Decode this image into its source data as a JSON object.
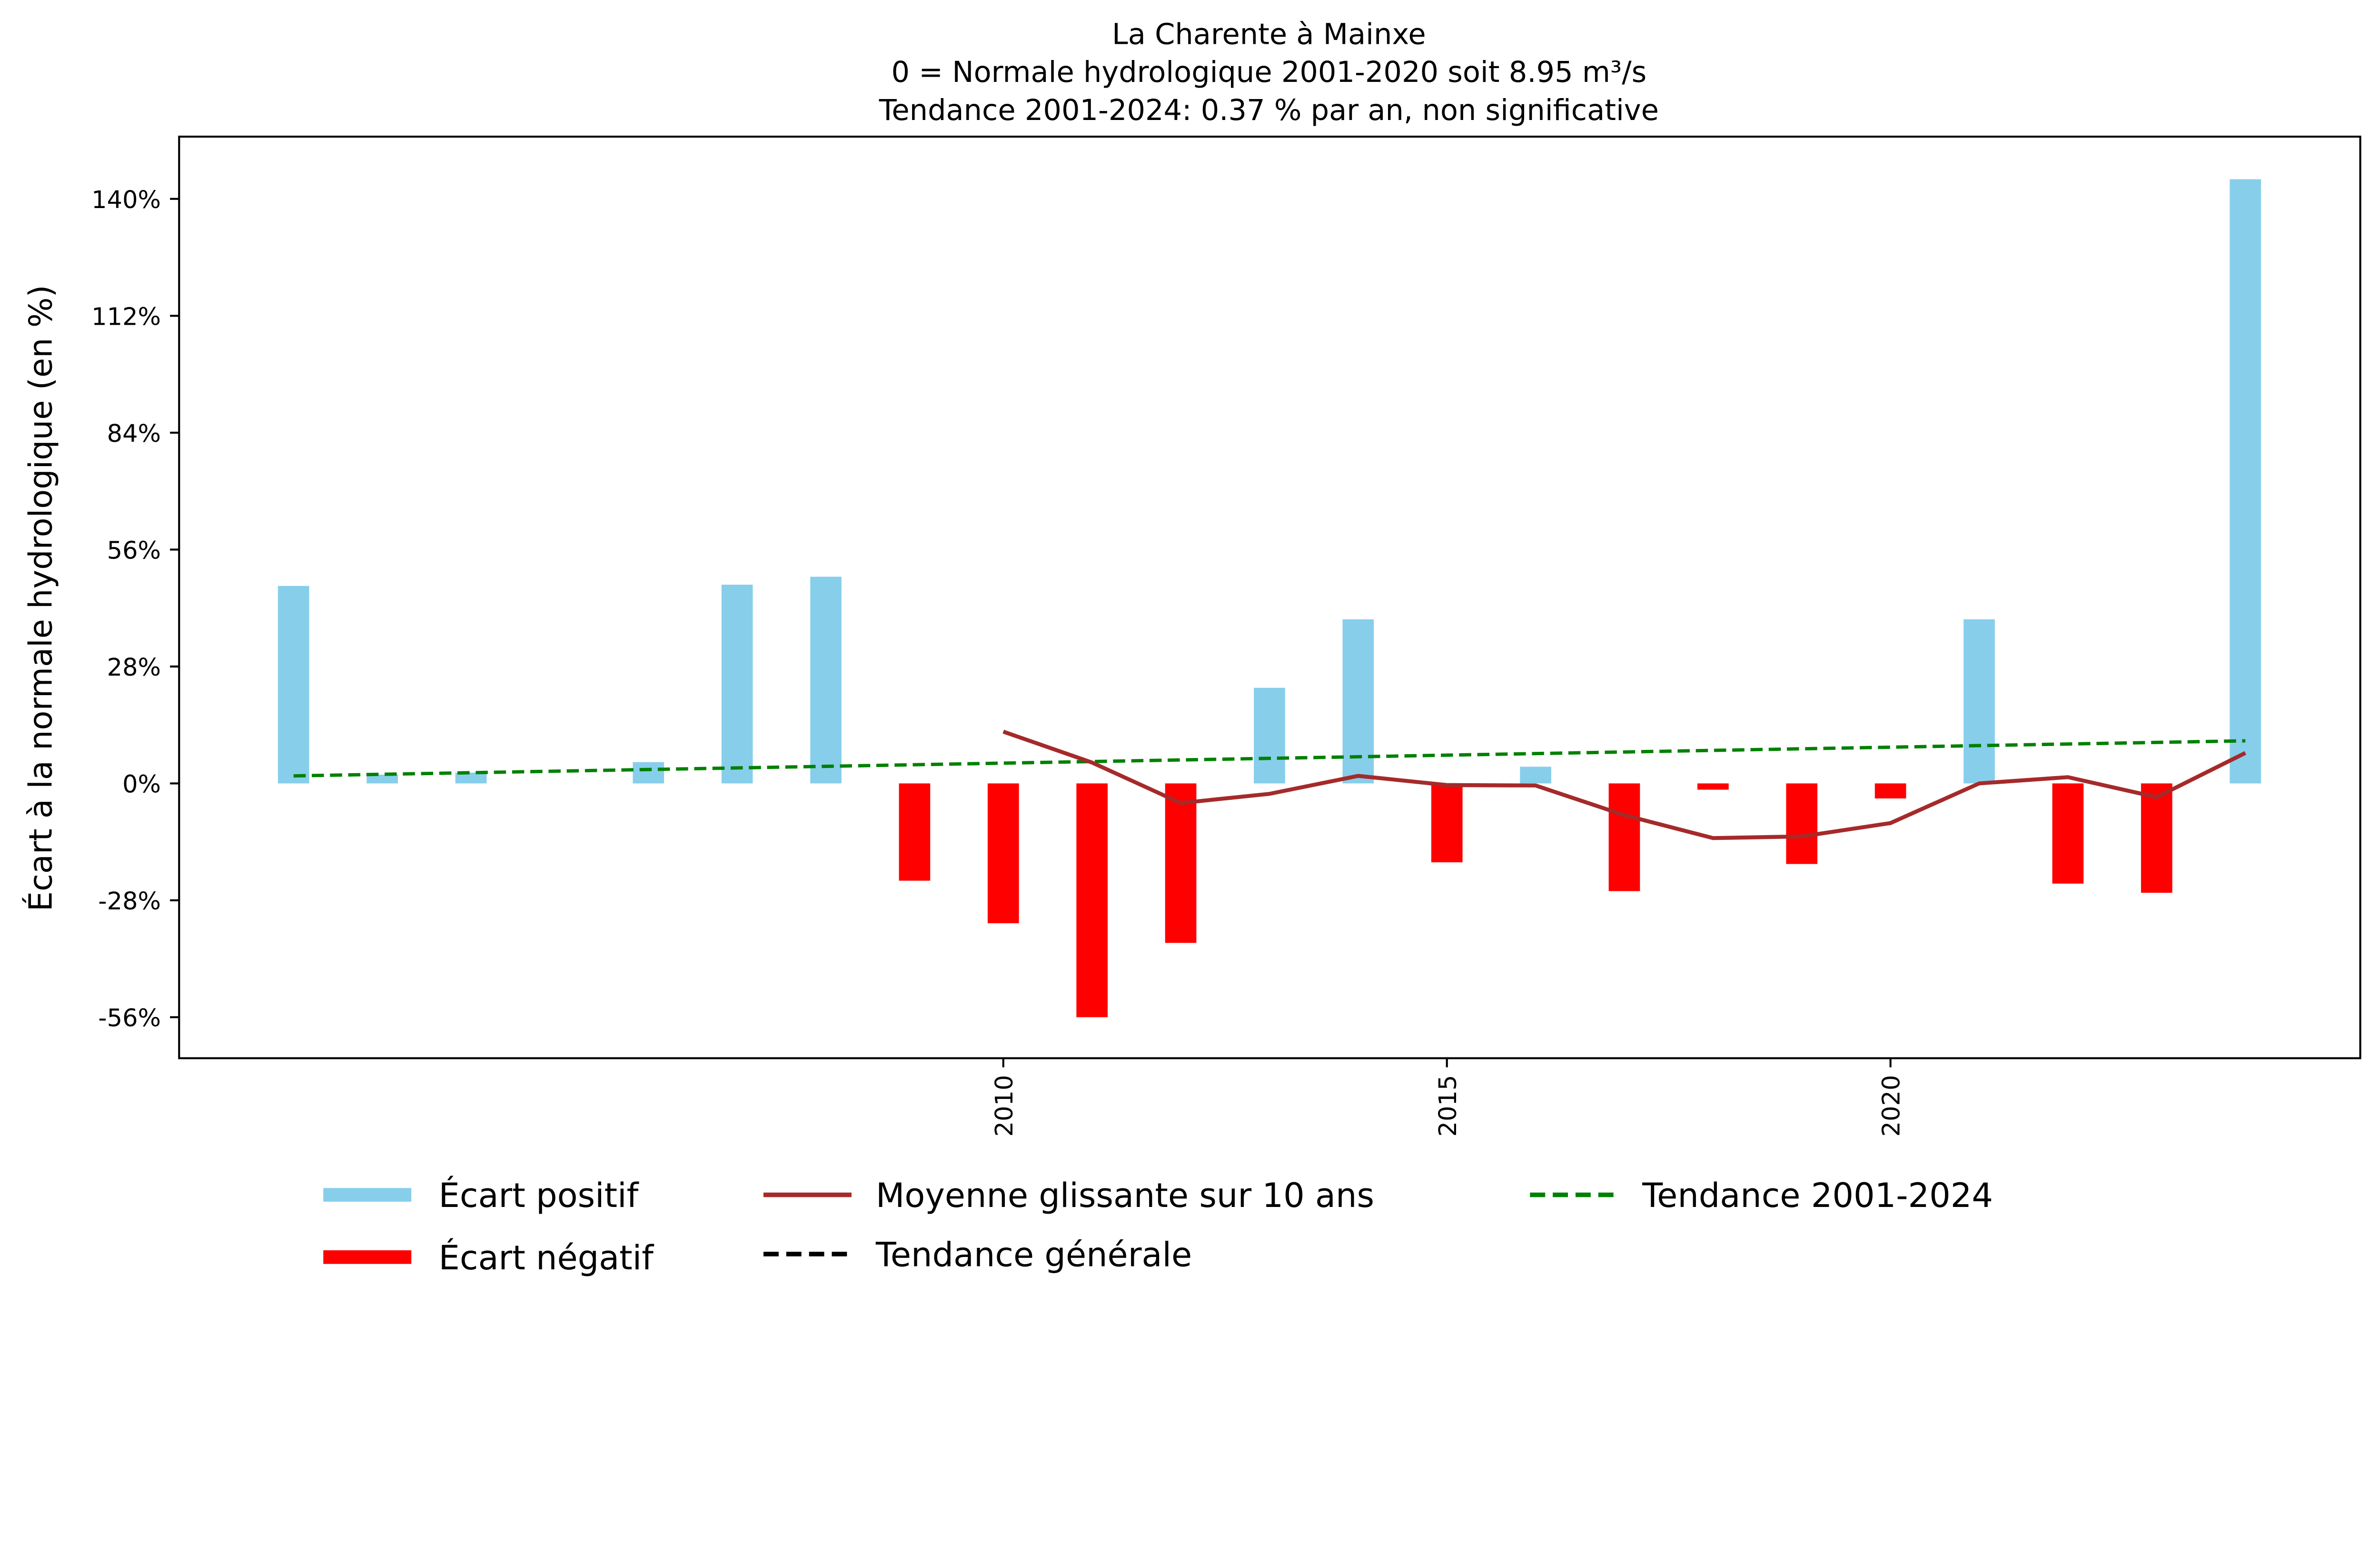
{
  "chart_data": {
    "type": "bar",
    "title": [
      "La Charente à Mainxe",
      "0 = Normale hydrologique 2001-2020 soit 8.95 m³/s",
      "Tendance 2001-2024: 0.37 % par an, non significative"
    ],
    "xlabel": "",
    "ylabel": "Écart à la normale hydrologique (en %)",
    "ylim": [
      -66,
      150
    ],
    "yticks": [
      -56,
      -28,
      0,
      28,
      56,
      84,
      112,
      140
    ],
    "ytick_labels": [
      "-56%",
      "-28%",
      "0%",
      "28%",
      "56%",
      "84%",
      "112%",
      "140%"
    ],
    "xticks": [
      2010,
      2015,
      2020
    ],
    "xtick_labels": [
      "2010",
      "2015",
      "2020"
    ],
    "xlim": [
      2000.6,
      2025.2
    ],
    "years": [
      2002,
      2003,
      2004,
      2005,
      2006,
      2007,
      2008,
      2009,
      2010,
      2011,
      2012,
      2013,
      2014,
      2015,
      2016,
      2017,
      2018,
      2019,
      2020,
      2021,
      2022,
      2023,
      2024
    ],
    "values": [
      47.3,
      2.1,
      2.6,
      0,
      5.1,
      47.6,
      49.5,
      -23.3,
      -33.5,
      -56,
      -38.2,
      22.9,
      39.3,
      -18.9,
      4,
      -25.8,
      -1.5,
      -19.3,
      -3.6,
      39.3,
      -24,
      -26.2,
      144.7
    ],
    "moving_average": {
      "years": [
        2010,
        2011,
        2012,
        2013,
        2014,
        2015,
        2016,
        2017,
        2018,
        2019,
        2020,
        2021,
        2022,
        2023,
        2024
      ],
      "values": [
        12.4,
        5,
        -4.7,
        -2.5,
        1.8,
        -0.4,
        -0.5,
        -7.6,
        -13.1,
        -12.7,
        -9.5,
        0,
        1.5,
        -3.3,
        7.3
      ]
    },
    "trend": {
      "years": [
        2002,
        2024
      ],
      "values": [
        1.8,
        10.2
      ]
    },
    "colors": {
      "positive": "#87ceeb",
      "negative": "#ff0000",
      "moving_average": "#a52a2a",
      "trend": "#008000",
      "general_trend": "#000000"
    },
    "legend": {
      "placement": "bottom",
      "entries": [
        "Écart positif",
        "Écart négatif",
        "Moyenne glissante sur 10 ans",
        "Tendance générale",
        "Tendance 2001-2024"
      ]
    }
  }
}
